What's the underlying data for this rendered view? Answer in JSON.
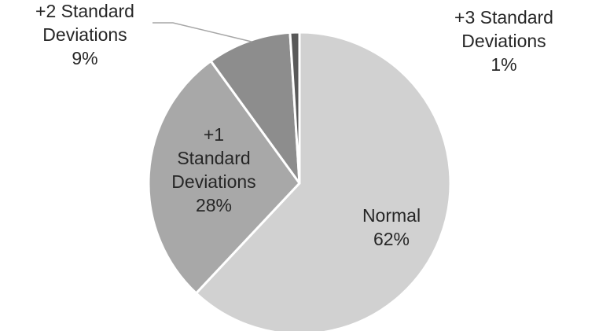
{
  "chart_data": {
    "type": "pie",
    "title": "",
    "legend": "none",
    "slices": [
      {
        "label_lines": [
          "Normal",
          "62%"
        ],
        "value": 62,
        "color": "#d1d1d1"
      },
      {
        "label_lines": [
          "+1",
          "Standard",
          "Deviations",
          "28%"
        ],
        "value": 28,
        "color": "#a8a8a8"
      },
      {
        "label_lines": [
          "+2 Standard",
          "Deviations",
          "9%"
        ],
        "value": 9,
        "color": "#8d8d8d"
      },
      {
        "label_lines": [
          "+3 Standard",
          "Deviations",
          "1%"
        ],
        "value": 1,
        "color": "#595959"
      }
    ]
  }
}
